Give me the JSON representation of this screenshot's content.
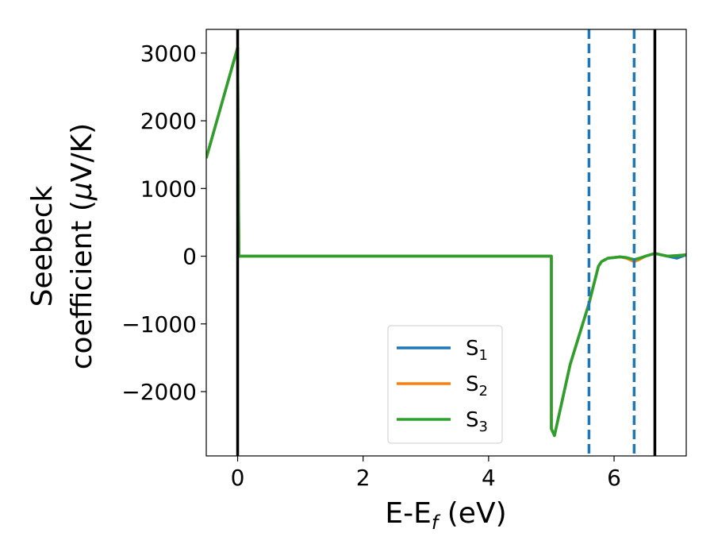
{
  "chart_data": {
    "type": "line",
    "xlabel": {
      "main": "E-E",
      "sub": "f",
      "suffix": " (eV)"
    },
    "ylabel": {
      "line1": "Seebeck",
      "line2_text": "coefficient  (",
      "line2_mu": "μ",
      "line2_end": "V/K)"
    },
    "xlim": [
      -0.5,
      7.15
    ],
    "ylim": [
      -2950,
      3350
    ],
    "xticks": [
      0,
      2,
      4,
      6
    ],
    "xtick_labels": [
      "0",
      "2",
      "4",
      "6"
    ],
    "yticks": [
      3000,
      2000,
      1000,
      0,
      -1000,
      -2000
    ],
    "ytick_labels": [
      "3000",
      "2000",
      "1000",
      "0",
      "−1000",
      "−2000"
    ],
    "grid": false,
    "legend_placement": "lower center",
    "vlines_solid": [
      0.0,
      6.65
    ],
    "vlines_dashed": [
      5.6,
      6.32
    ],
    "colors": {
      "S1": "#1f77b4",
      "S2": "#ff7f0e",
      "S3": "#2ca02c",
      "solid_line": "#000000",
      "dashed_line": "#1f77b4"
    },
    "series": [
      {
        "name": "S1",
        "base": "S",
        "sub": "1",
        "x": [
          -0.5,
          0.0,
          0.02,
          5.0,
          5.0,
          5.05,
          5.3,
          5.6,
          5.75,
          5.8,
          5.9,
          6.0,
          6.1,
          6.2,
          6.32,
          6.4,
          6.5,
          6.65,
          6.75,
          6.85,
          7.0,
          7.15
        ],
        "y": [
          1450,
          3080,
          0,
          0,
          -2550,
          -2650,
          -1600,
          -700,
          -150,
          -80,
          -30,
          -20,
          -10,
          -30,
          -60,
          -40,
          0,
          40,
          20,
          0,
          -30,
          20
        ]
      },
      {
        "name": "S2",
        "base": "S",
        "sub": "2",
        "x": [
          -0.5,
          0.0,
          0.02,
          5.0,
          5.0,
          5.05,
          5.3,
          5.6,
          5.75,
          5.8,
          5.9,
          6.0,
          6.1,
          6.2,
          6.32,
          6.4,
          6.5,
          6.65,
          6.75,
          6.85,
          7.0,
          7.15
        ],
        "y": [
          1450,
          3080,
          0,
          0,
          -2550,
          -2650,
          -1600,
          -700,
          -150,
          -80,
          -30,
          -20,
          -10,
          -30,
          -80,
          -50,
          0,
          40,
          20,
          0,
          10,
          20
        ]
      },
      {
        "name": "S3",
        "base": "S",
        "sub": "3",
        "x": [
          -0.5,
          0.0,
          0.02,
          5.0,
          5.0,
          5.05,
          5.3,
          5.6,
          5.75,
          5.8,
          5.9,
          6.0,
          6.1,
          6.2,
          6.32,
          6.4,
          6.5,
          6.65,
          6.75,
          6.85,
          7.0,
          7.15
        ],
        "y": [
          1450,
          3080,
          0,
          0,
          -2550,
          -2650,
          -1600,
          -700,
          -150,
          -80,
          -30,
          -20,
          -10,
          -20,
          -50,
          -30,
          0,
          40,
          20,
          0,
          10,
          20
        ]
      }
    ]
  }
}
